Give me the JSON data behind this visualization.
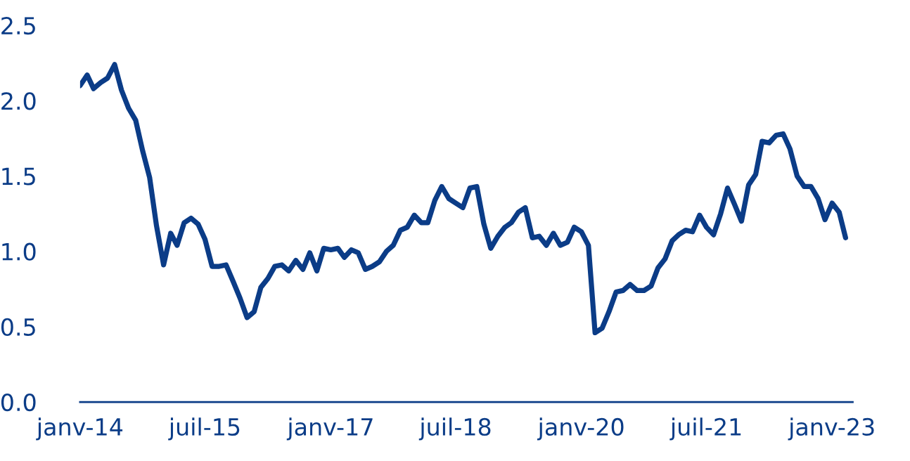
{
  "chart_data": {
    "type": "line",
    "x": [
      "2014-01",
      "2014-02",
      "2014-03",
      "2014-04",
      "2014-05",
      "2014-06",
      "2014-07",
      "2014-08",
      "2014-09",
      "2014-10",
      "2014-11",
      "2014-12",
      "2015-01",
      "2015-02",
      "2015-03",
      "2015-04",
      "2015-05",
      "2015-06",
      "2015-07",
      "2015-08",
      "2015-09",
      "2015-10",
      "2015-11",
      "2015-12",
      "2016-01",
      "2016-02",
      "2016-03",
      "2016-04",
      "2016-05",
      "2016-06",
      "2016-07",
      "2016-08",
      "2016-09",
      "2016-10",
      "2016-11",
      "2016-12",
      "2017-01",
      "2017-02",
      "2017-03",
      "2017-04",
      "2017-05",
      "2017-06",
      "2017-07",
      "2017-08",
      "2017-09",
      "2017-10",
      "2017-11",
      "2017-12",
      "2018-01",
      "2018-02",
      "2018-03",
      "2018-04",
      "2018-05",
      "2018-06",
      "2018-07",
      "2018-08",
      "2018-09",
      "2018-10",
      "2018-11",
      "2018-12",
      "2019-01",
      "2019-02",
      "2019-03",
      "2019-04",
      "2019-05",
      "2019-06",
      "2019-07",
      "2019-08",
      "2019-09",
      "2019-10",
      "2019-11",
      "2019-12",
      "2020-01",
      "2020-02",
      "2020-03",
      "2020-04",
      "2020-05",
      "2020-06",
      "2020-07",
      "2020-08",
      "2020-09",
      "2020-10",
      "2020-11",
      "2020-12",
      "2021-01",
      "2021-02",
      "2021-03",
      "2021-04",
      "2021-05",
      "2021-06",
      "2021-07",
      "2021-08",
      "2021-09",
      "2021-10",
      "2021-11",
      "2021-12",
      "2022-01",
      "2022-02",
      "2022-03",
      "2022-04",
      "2022-05",
      "2022-06",
      "2022-07",
      "2022-08",
      "2022-09",
      "2022-10",
      "2022-11",
      "2022-12",
      "2023-01",
      "2023-02",
      "2023-03"
    ],
    "series": [
      {
        "color": "#0b3c87",
        "values": [
          2.1,
          2.17,
          2.08,
          2.12,
          2.15,
          2.24,
          2.07,
          1.95,
          1.87,
          1.67,
          1.49,
          1.17,
          0.91,
          1.12,
          1.04,
          1.19,
          1.22,
          1.18,
          1.08,
          0.9,
          0.9,
          0.91,
          0.8,
          0.69,
          0.56,
          0.6,
          0.76,
          0.82,
          0.9,
          0.91,
          0.87,
          0.94,
          0.88,
          0.99,
          0.87,
          1.02,
          1.01,
          1.02,
          0.96,
          1.01,
          0.99,
          0.88,
          0.9,
          0.93,
          1.0,
          1.04,
          1.14,
          1.16,
          1.24,
          1.19,
          1.19,
          1.34,
          1.43,
          1.35,
          1.32,
          1.29,
          1.42,
          1.43,
          1.18,
          1.02,
          1.1,
          1.16,
          1.19,
          1.26,
          1.29,
          1.09,
          1.1,
          1.04,
          1.12,
          1.04,
          1.06,
          1.16,
          1.13,
          1.04,
          0.46,
          0.49,
          0.6,
          0.73,
          0.74,
          0.78,
          0.74,
          0.74,
          0.77,
          0.89,
          0.95,
          1.07,
          1.11,
          1.14,
          1.13,
          1.24,
          1.16,
          1.11,
          1.25,
          1.42,
          1.31,
          1.2,
          1.44,
          1.51,
          1.73,
          1.72,
          1.77,
          1.78,
          1.68,
          1.5,
          1.43,
          1.43,
          1.35,
          1.21,
          1.32,
          1.26,
          1.09
        ]
      }
    ],
    "xlim": [
      "2014-01",
      "2023-04"
    ],
    "xticks": [
      {
        "value": "2014-01",
        "label": "janv-14"
      },
      {
        "value": "2015-07",
        "label": "juil-15"
      },
      {
        "value": "2017-01",
        "label": "janv-17"
      },
      {
        "value": "2018-07",
        "label": "juil-18"
      },
      {
        "value": "2020-01",
        "label": "janv-20"
      },
      {
        "value": "2021-07",
        "label": "juil-21"
      },
      {
        "value": "2023-01",
        "label": "janv-23"
      }
    ],
    "ylim": [
      0,
      2.5
    ],
    "yticks": [
      {
        "value": 0,
        "label": "0.0"
      },
      {
        "value": 0.5,
        "label": "0.5"
      },
      {
        "value": 1,
        "label": "1.0"
      },
      {
        "value": 1.5,
        "label": "1.5"
      },
      {
        "value": 2,
        "label": "2.0"
      },
      {
        "value": 2.5,
        "label": "2.5"
      }
    ],
    "grid": false
  }
}
